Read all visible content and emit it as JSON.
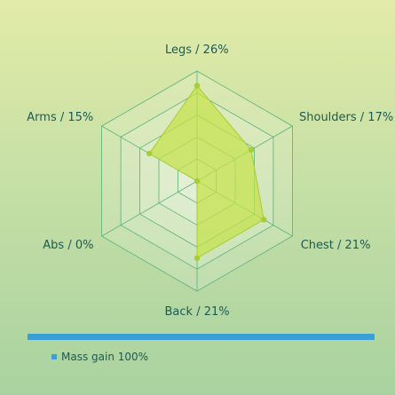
{
  "chart_data": {
    "type": "radar",
    "axes": [
      "Legs",
      "Shoulders",
      "Chest",
      "Back",
      "Abs",
      "Arms"
    ],
    "values": [
      26,
      17,
      21,
      21,
      0,
      15
    ],
    "labels": [
      "Legs / 26%",
      "Shoulders / 17%",
      "Chest / 21%",
      "Back / 21%",
      "Abs / 0%",
      "Arms / 15%"
    ],
    "rmax": 30,
    "rings": 5,
    "series": [
      {
        "name": "Mass gain",
        "values": [
          26,
          17,
          21,
          21,
          0,
          15
        ]
      }
    ],
    "legend": {
      "label": "Mass gain 100%",
      "position": "bottom-left"
    },
    "colors": {
      "fill": "#c5e24a",
      "stroke": "#a8cc33",
      "grid": "#59b27a",
      "accent": "#3a9fd6",
      "text": "#1c5a56"
    }
  }
}
